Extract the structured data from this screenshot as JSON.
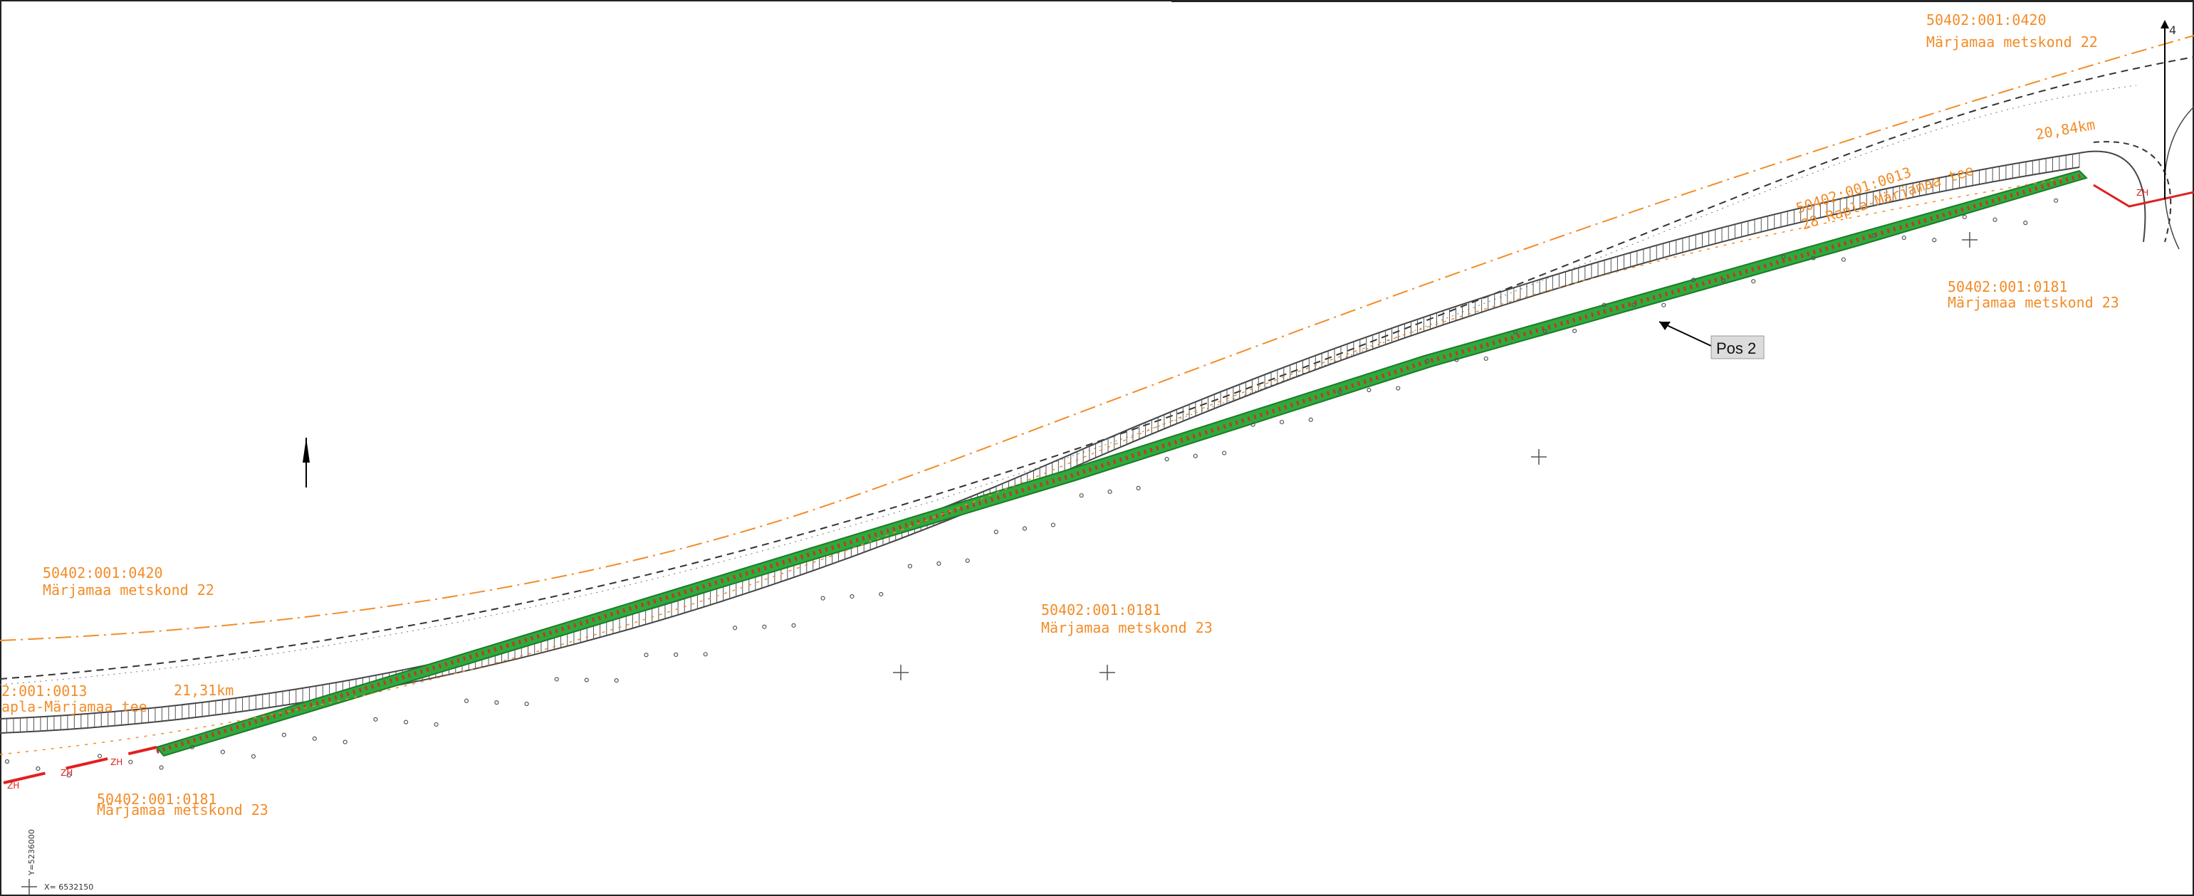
{
  "parcels": [
    {
      "id": "50402:001:0420",
      "name": "Märjamaa metskond 22"
    },
    {
      "id": "50402:001:0420",
      "name": "Märjamaa metskond 22"
    },
    {
      "id": "50402:001:0181",
      "name": "Märjamaa metskond 23"
    },
    {
      "id": "50402:001:0181",
      "name": "Märjamaa metskond 23"
    },
    {
      "id": "50402:001:0181",
      "name": "Märjamaa metskond 23"
    }
  ],
  "road": {
    "id_right": "50402:001:0013",
    "name_right": "28 Rapla-Märjamaa tee",
    "id_left": "2:001:0013",
    "name_left": "apla-Märjamaa tee"
  },
  "chainage": [
    "21,31km",
    "20,84km"
  ],
  "callout": "Pos 2",
  "map_edge_mark": "4",
  "marker_text": "ZH",
  "coordinates": {
    "x": "X= 6532150",
    "y": "Y=5236000"
  },
  "colors": {
    "parcel_label": "#f28c28",
    "road_edge": "#444444",
    "barrier_fill": "#2eaa3c",
    "barrier_hatch": "#c0392b",
    "red_line": "#e02020"
  }
}
